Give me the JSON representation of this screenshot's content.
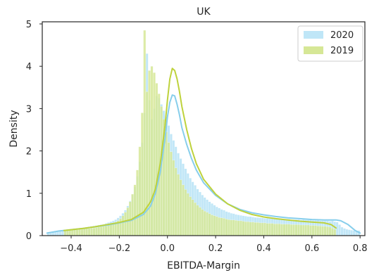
{
  "chart_data": {
    "type": "area",
    "title": "UK",
    "xlabel": "EBITDA-Margin",
    "ylabel": "Density",
    "xlim": [
      -0.52,
      0.82
    ],
    "ylim": [
      0,
      5.05
    ],
    "xticks": [
      -0.4,
      -0.2,
      0.0,
      0.2,
      0.4,
      0.6,
      0.8
    ],
    "xtick_labels": [
      "−0.4",
      "−0.2",
      "0.0",
      "0.2",
      "0.4",
      "0.6",
      "0.8"
    ],
    "yticks": [
      0,
      1,
      2,
      3,
      4,
      5
    ],
    "ytick_labels": [
      "0",
      "1",
      "2",
      "3",
      "4",
      "5"
    ],
    "grid": false,
    "legend_position": "top-right",
    "series": [
      {
        "name": "2020",
        "color": "#87ceeb",
        "fill_color": "#bfe6f7",
        "histogram": {
          "range": [
            -0.5,
            0.8
          ],
          "density": [
            0.05,
            0.08,
            0.09,
            0.1,
            0.11,
            0.11,
            0.12,
            0.13,
            0.14,
            0.15,
            0.16,
            0.17,
            0.17,
            0.18,
            0.18,
            0.19,
            0.2,
            0.21,
            0.22,
            0.23,
            0.24,
            0.25,
            0.26,
            0.27,
            0.29,
            0.31,
            0.33,
            0.35,
            0.38,
            0.42,
            0.47,
            0.53,
            0.6,
            0.7,
            0.82,
            0.97,
            1.15,
            1.4,
            1.75,
            2.2,
            2.9,
            4.3,
            3.2,
            2.75,
            3.0,
            3.3,
            3.25,
            3.1,
            2.95,
            2.8,
            2.6,
            2.4,
            2.25,
            2.1,
            1.95,
            1.82,
            1.7,
            1.58,
            1.47,
            1.36,
            1.27,
            1.19,
            1.1,
            1.03,
            0.96,
            0.9,
            0.85,
            0.8,
            0.76,
            0.72,
            0.68,
            0.65,
            0.62,
            0.6,
            0.57,
            0.55,
            0.53,
            0.52,
            0.5,
            0.49,
            0.48,
            0.47,
            0.46,
            0.45,
            0.45,
            0.44,
            0.43,
            0.43,
            0.42,
            0.42,
            0.41,
            0.41,
            0.41,
            0.4,
            0.4,
            0.4,
            0.4,
            0.39,
            0.39,
            0.39,
            0.39,
            0.38,
            0.38,
            0.38,
            0.38,
            0.37,
            0.38,
            0.37,
            0.37,
            0.37,
            0.36,
            0.36,
            0.36,
            0.35,
            0.35,
            0.35,
            0.35,
            0.34,
            0.35,
            0.33,
            0.32,
            0.26,
            0.2,
            0.17,
            0.15,
            0.14,
            0.13,
            0.12,
            0.12,
            0.12
          ]
        },
        "kde": {
          "x": [
            -0.5,
            -0.45,
            -0.4,
            -0.35,
            -0.3,
            -0.25,
            -0.2,
            -0.15,
            -0.1,
            -0.07,
            -0.05,
            -0.03,
            -0.01,
            0.0,
            0.01,
            0.02,
            0.03,
            0.04,
            0.05,
            0.06,
            0.08,
            0.1,
            0.12,
            0.15,
            0.2,
            0.25,
            0.3,
            0.35,
            0.4,
            0.45,
            0.5,
            0.55,
            0.6,
            0.65,
            0.68,
            0.7,
            0.72,
            0.75,
            0.78,
            0.8
          ],
          "y": [
            0.06,
            0.11,
            0.14,
            0.17,
            0.21,
            0.25,
            0.3,
            0.36,
            0.5,
            0.7,
            1.0,
            1.5,
            2.3,
            2.8,
            3.15,
            3.32,
            3.3,
            3.1,
            2.85,
            2.55,
            2.15,
            1.82,
            1.55,
            1.25,
            0.95,
            0.75,
            0.62,
            0.54,
            0.49,
            0.45,
            0.42,
            0.4,
            0.38,
            0.37,
            0.37,
            0.37,
            0.35,
            0.26,
            0.12,
            0.06
          ]
        }
      },
      {
        "name": "2019",
        "color": "#bed23c",
        "fill_color": "#d6e796",
        "histogram": {
          "range": [
            -0.43,
            0.7
          ],
          "density": [
            0.12,
            0.12,
            0.13,
            0.13,
            0.14,
            0.14,
            0.15,
            0.15,
            0.16,
            0.17,
            0.17,
            0.18,
            0.18,
            0.19,
            0.2,
            0.21,
            0.22,
            0.23,
            0.25,
            0.27,
            0.29,
            0.32,
            0.35,
            0.4,
            0.47,
            0.55,
            0.66,
            0.8,
            0.98,
            1.2,
            1.55,
            2.1,
            2.9,
            4.85,
            3.4,
            3.9,
            4.0,
            3.85,
            3.6,
            3.35,
            3.05,
            2.75,
            2.45,
            2.2,
            1.98,
            1.78,
            1.6,
            1.45,
            1.32,
            1.2,
            1.09,
            1.0,
            0.92,
            0.85,
            0.78,
            0.72,
            0.67,
            0.62,
            0.58,
            0.55,
            0.52,
            0.49,
            0.47,
            0.45,
            0.43,
            0.42,
            0.41,
            0.39,
            0.38,
            0.37,
            0.37,
            0.36,
            0.35,
            0.35,
            0.34,
            0.33,
            0.33,
            0.32,
            0.32,
            0.31,
            0.31,
            0.3,
            0.3,
            0.3,
            0.29,
            0.29,
            0.29,
            0.28,
            0.28,
            0.28,
            0.27,
            0.27,
            0.27,
            0.27,
            0.26,
            0.26,
            0.26,
            0.26,
            0.25,
            0.25,
            0.25,
            0.25,
            0.24,
            0.24,
            0.24,
            0.23,
            0.23,
            0.22,
            0.22,
            0.21,
            0.2,
            0.18,
            0.15
          ]
        },
        "kde": {
          "x": [
            -0.43,
            -0.4,
            -0.35,
            -0.3,
            -0.25,
            -0.2,
            -0.15,
            -0.1,
            -0.07,
            -0.05,
            -0.03,
            -0.01,
            0.0,
            0.01,
            0.02,
            0.03,
            0.04,
            0.05,
            0.06,
            0.08,
            0.1,
            0.12,
            0.15,
            0.2,
            0.25,
            0.3,
            0.35,
            0.4,
            0.45,
            0.5,
            0.55,
            0.6,
            0.65,
            0.68,
            0.7
          ],
          "y": [
            0.12,
            0.14,
            0.17,
            0.21,
            0.26,
            0.31,
            0.38,
            0.55,
            0.8,
            1.1,
            1.7,
            2.6,
            3.2,
            3.7,
            3.95,
            3.9,
            3.7,
            3.4,
            3.05,
            2.5,
            2.05,
            1.7,
            1.33,
            0.98,
            0.75,
            0.6,
            0.5,
            0.44,
            0.4,
            0.37,
            0.34,
            0.32,
            0.3,
            0.26,
            0.18
          ]
        }
      }
    ]
  }
}
